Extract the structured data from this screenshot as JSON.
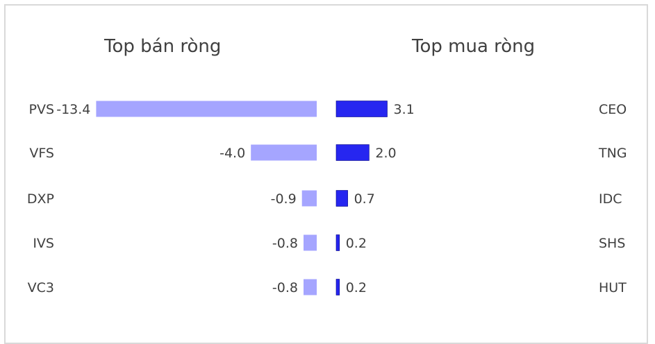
{
  "chart_data": [
    {
      "type": "bar",
      "orientation": "horizontal",
      "title": "Top bán ròng",
      "categories": [
        "PVS",
        "VFS",
        "DXP",
        "IVS",
        "VC3"
      ],
      "values": [
        -13.4,
        -4.0,
        -0.9,
        -0.8,
        -0.8
      ],
      "value_labels": [
        "-13.4",
        "-4.0",
        "-0.9",
        "-0.8",
        "-0.8"
      ],
      "color": "#a5a5ff",
      "grid": false,
      "legend": "none"
    },
    {
      "type": "bar",
      "orientation": "horizontal",
      "title": "Top mua ròng",
      "categories": [
        "CEO",
        "TNG",
        "IDC",
        "SHS",
        "HUT"
      ],
      "values": [
        3.1,
        2.0,
        0.7,
        0.2,
        0.2
      ],
      "value_labels": [
        "3.1",
        "2.0",
        "0.7",
        "0.2",
        "0.2"
      ],
      "color": "#2626f0",
      "grid": false,
      "legend": "none"
    }
  ]
}
